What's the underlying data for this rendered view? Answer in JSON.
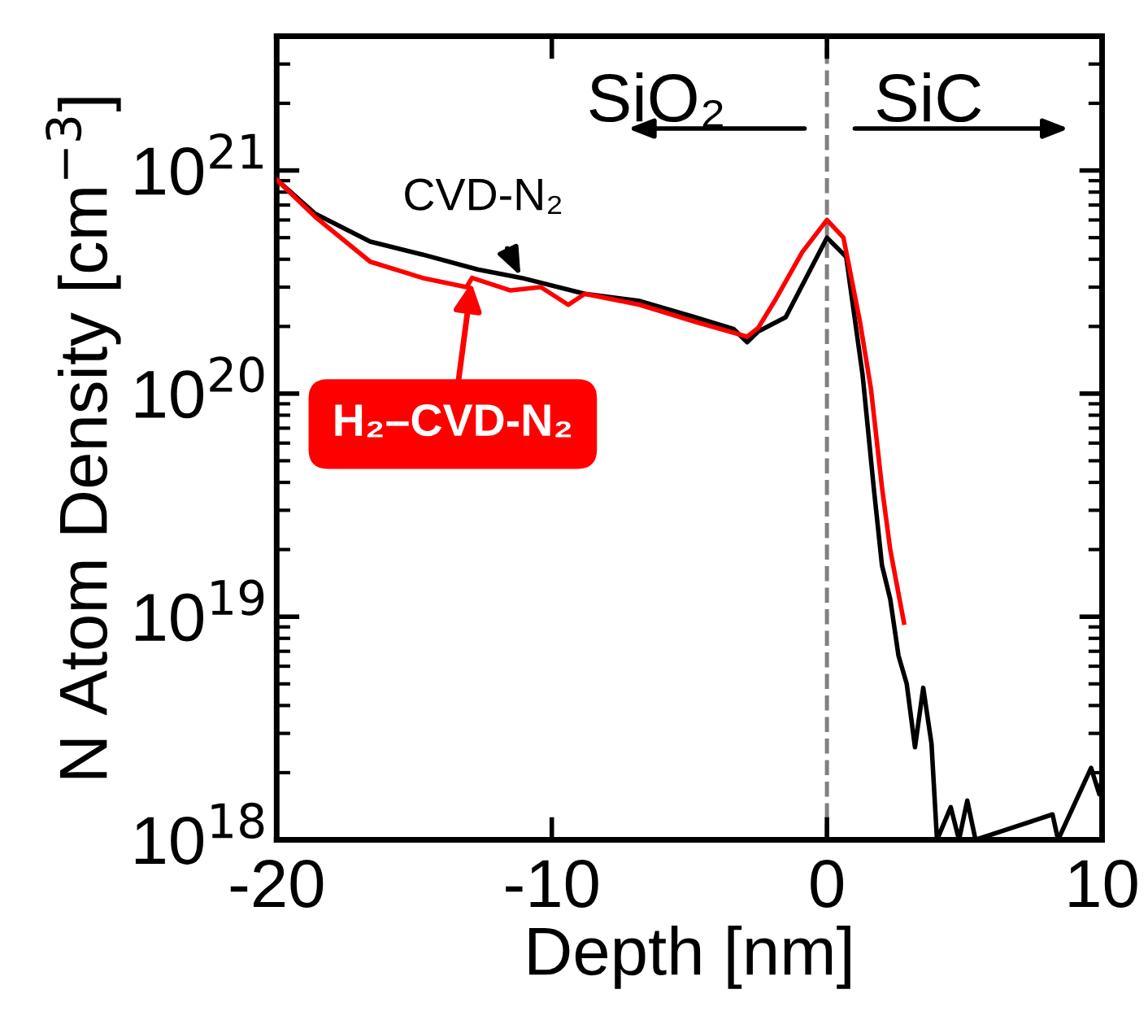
{
  "chart_data": {
    "type": "line",
    "xlabel": "Depth [nm]",
    "ylabel": "N Atom Density [cm$^{−3}$]",
    "xlim": [
      -20,
      10
    ],
    "xticks": [
      -20,
      -10,
      0,
      10
    ],
    "ylim": [
      1e+18,
      4e+21
    ],
    "yticks": [
      {
        "value": 1e+18,
        "label": "10$^{18}$"
      },
      {
        "value": 1e+19,
        "label": "10$^{19}$"
      },
      {
        "value": 1e+20,
        "label": "10$^{20}$"
      },
      {
        "value": 1e+21,
        "label": "10$^{21}$"
      }
    ],
    "log": "y",
    "grid": false,
    "legend": "left",
    "marker": "none",
    "line_style": "solid",
    "annotations": [
      "SiO₂",
      "SiC"
    ],
    "ref_lines": [
      {
        "axis": "x",
        "value": 0,
        "color": "#808080",
        "line_style": "dashed"
      }
    ],
    "series": [
      {
        "name": "CVD-N₂",
        "color": "#000000",
        "x": [
          -20,
          -18.6,
          -16.6,
          -14.7,
          -12.7,
          -11.1,
          -8.8,
          -6.8,
          -4.8,
          -3.4,
          -2.9,
          -2.5,
          -1.5,
          0,
          0.7,
          1.3,
          1.7,
          2.0,
          2.3,
          2.6,
          2.9,
          3.2,
          3.5,
          3.8,
          4.0,
          4.5,
          4.8,
          5.1,
          5.4,
          8.2,
          8.4,
          9.6,
          9.9,
          10.0
        ],
        "values": [
          9.1e+20,
          6.4e+20,
          4.8e+20,
          4.2e+20,
          3.6e+20,
          3.3e+20,
          2.8e+20,
          2.6e+20,
          2.2e+20,
          1.95e+20,
          1.7e+20,
          1.9e+20,
          2.2e+20,
          5e+20,
          4.1e+20,
          1.2e+20,
          3.8e+19,
          1.7e+19,
          1.2e+19,
          6.7e+18,
          5e+18,
          2.6e+18,
          4.8e+18,
          2.7e+18,
          1e+18,
          1.4e+18,
          1e+18,
          1.5e+18,
          1e+18,
          1.3e+18,
          1e+18,
          2.1e+18,
          1.6e+18,
          1.9e+18
        ]
      },
      {
        "name": "H₂–CVD-N₂",
        "color": "#ff0000",
        "x": [
          -20,
          -18.6,
          -16.6,
          -14.7,
          -13.1,
          -12.9,
          -11.5,
          -10.4,
          -9.4,
          -8.8,
          -6.8,
          -4.8,
          -2.9,
          -2.5,
          -1.9,
          -0.9,
          0,
          0.6,
          1.2,
          1.6,
          2.0,
          2.3,
          2.8
        ],
        "values": [
          9.1e+20,
          6.2e+20,
          3.9e+20,
          3.3e+20,
          3e+20,
          3.3e+20,
          2.9e+20,
          3e+20,
          2.5e+20,
          2.8e+20,
          2.5e+20,
          2.1e+20,
          1.8e+20,
          1.97e+20,
          2.6e+20,
          4.3e+20,
          6e+20,
          5e+20,
          2.1e+20,
          1.05e+20,
          3.8e+19,
          2e+19,
          9.4e+18
        ]
      }
    ]
  }
}
